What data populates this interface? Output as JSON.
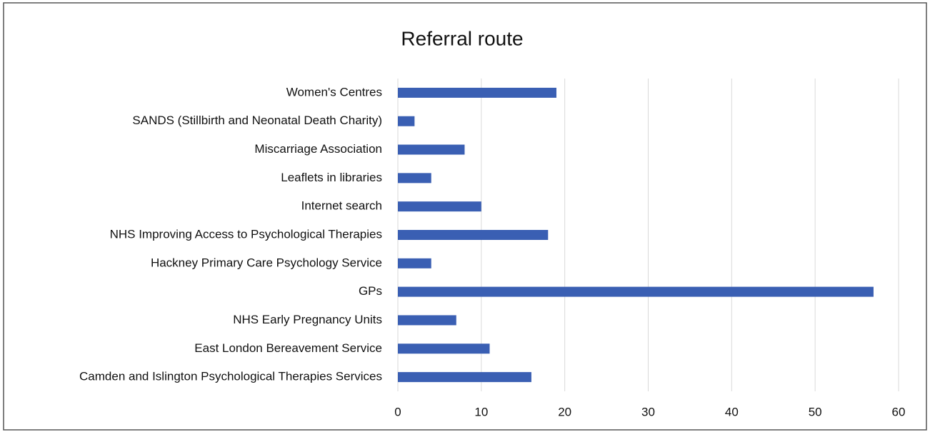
{
  "chart_data": {
    "type": "bar",
    "orientation": "horizontal",
    "title": "Referral route",
    "categories": [
      "Women's Centres",
      "SANDS (Stillbirth and Neonatal Death Charity)",
      "Miscarriage Association",
      "Leaflets in libraries",
      "Internet search",
      "NHS Improving Access to Psychological Therapies",
      "Hackney Primary Care Psychology Service",
      "GPs",
      "NHS Early Pregnancy Units",
      "East London Bereavement Service",
      "Camden and Islington Psychological Therapies Services"
    ],
    "values": [
      19,
      2,
      8,
      4,
      10,
      18,
      4,
      57,
      7,
      11,
      16
    ],
    "color": "#3a5fb3",
    "xlim": [
      0,
      60
    ],
    "xticks": [
      0,
      10,
      20,
      30,
      40,
      50,
      60
    ],
    "grid": true
  }
}
